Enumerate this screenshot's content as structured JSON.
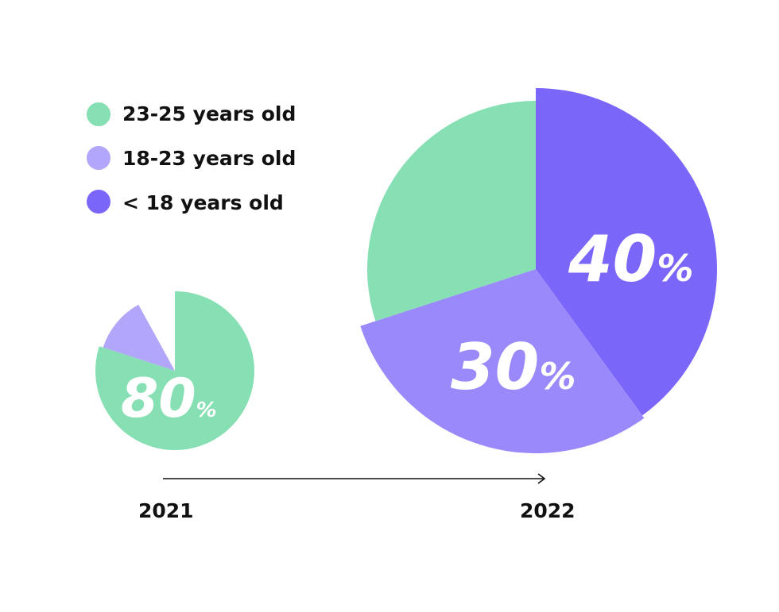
{
  "chart_data": [
    {
      "type": "pie",
      "year": "2021",
      "slices": [
        {
          "label": "23-25 years old",
          "value": 80,
          "color": "#86E0B3",
          "shown_label": "80",
          "shown_unit": "%"
        },
        {
          "label": "18-23 years old",
          "value": 12,
          "color": "#B1A6FA",
          "shown_label": "",
          "shown_unit": ""
        },
        {
          "label": "< 18 years old",
          "value": 8,
          "color": "#ffffff",
          "shown_label": "",
          "shown_unit": ""
        }
      ]
    },
    {
      "type": "pie",
      "year": "2022",
      "slices": [
        {
          "label": "< 18 years old",
          "value": 40,
          "color": "#7B66FA",
          "shown_label": "40",
          "shown_unit": "%"
        },
        {
          "label": "18-23 years old",
          "value": 30,
          "color": "#9A89FA",
          "shown_label": "30",
          "shown_unit": "%"
        },
        {
          "label": "23-25 years old",
          "value": 30,
          "color": "#86E0B3",
          "shown_label": "",
          "shown_unit": ""
        }
      ]
    }
  ],
  "legend": {
    "items": [
      {
        "label": "23-25 years old",
        "color": "#86E0B3"
      },
      {
        "label": "18-23 years old",
        "color": "#B1A6FA"
      },
      {
        "label": "< 18 years old",
        "color": "#7B66FA"
      }
    ]
  },
  "timeline": {
    "start_label": "2021",
    "end_label": "2022"
  }
}
